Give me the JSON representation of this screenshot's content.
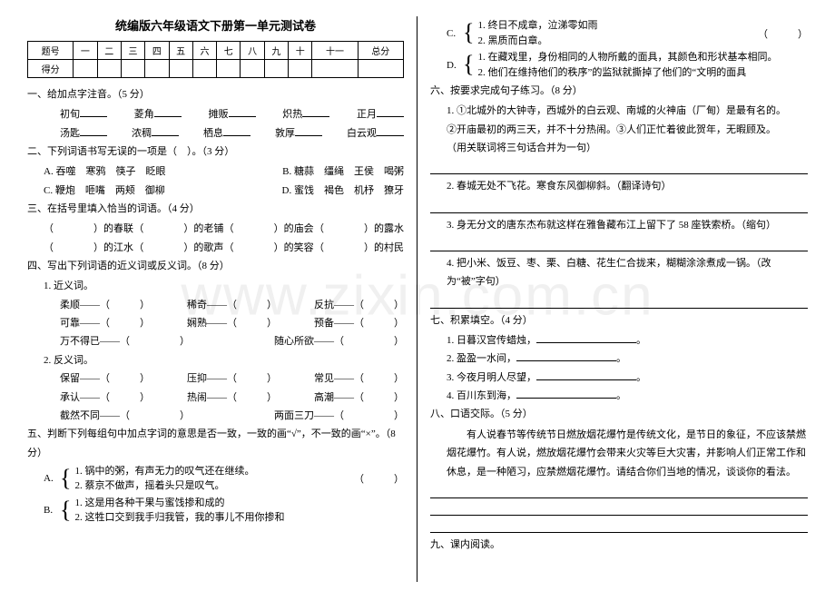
{
  "watermark": "www.zixin.com.cn",
  "title": "统编版六年级语文下册第一单元测试卷",
  "score_table": {
    "row1": [
      "题号",
      "一",
      "二",
      "三",
      "四",
      "五",
      "六",
      "七",
      "八",
      "九",
      "十",
      "十一",
      "总分"
    ],
    "row2_label": "得分"
  },
  "left": {
    "q1": {
      "head": "一、给加点字注音。（5 分）",
      "r1": [
        "初旬",
        "菱角",
        "摊贩",
        "炽热",
        "正月"
      ],
      "r2": [
        "汤匙",
        "浓稠",
        "栖息",
        "敦厚",
        "白云观"
      ]
    },
    "q2": {
      "head": "二、下列词语书写无误的一项是（　）。（3 分）",
      "a": "A. 吞噬　寒鸦　筷子　眨眼",
      "b": "B. 糖蒜　缰绳　王侯　喝粥",
      "c": "C. 鞭炮　咂嘴　两颊　御柳",
      "d": "D. 蜜饯　褐色　机杼　獠牙"
    },
    "q3": {
      "head": "三、在括号里填入恰当的词语。（4 分）",
      "r1": [
        "（　　　　）的春联",
        "（　　　　）的老铺",
        "（　　　　）的庙会",
        "（　　　　）的露水"
      ],
      "r2": [
        "（　　　　）的江水",
        "（　　　　）的歌声",
        "（　　　　）的笑容",
        "（　　　　）的村民"
      ]
    },
    "q4": {
      "head": "四、写出下列词语的近义词或反义词。（8 分）",
      "sub1": "1. 近义词。",
      "s1r1": [
        "柔顺——（　　　）",
        "稀奇——（　　　）",
        "反抗——（　　　）"
      ],
      "s1r2": [
        "可靠——（　　　）",
        "娴熟——（　　　）",
        "预备——（　　　）"
      ],
      "s1r3": [
        "万不得已——（　　　　　）",
        "随心所欲——（　　　　　）"
      ],
      "sub2": "2. 反义词。",
      "s2r1": [
        "保留——（　　　）",
        "压抑——（　　　）",
        "常见——（　　　）"
      ],
      "s2r2": [
        "承认——（　　　）",
        "热闹——（　　　）",
        "高潮——（　　　）"
      ],
      "s2r3": [
        "截然不同——（　　　　　）",
        "两面三刀——（　　　　　）"
      ]
    },
    "q5": {
      "head": "五、判断下列每组句中加点字词的意思是否一致，一致的画“√”，不一致的画“×”。（8 分）",
      "A1": "1. 锅中的粥，有声无力的叹气还在继续。",
      "A2": "2. 蔡京不做声，摇着头只是叹气。",
      "B1": "1. 这是用各种干果与蜜饯掺和成的",
      "B2": "2. 这牲口交到我手归我管，我的事儿不用你掺和"
    }
  },
  "right": {
    "C1": "1. 终日不成章，泣涕零如雨",
    "C2": "2. 黑质而白章。",
    "D1": "1. 在藏戏里，身份相同的人物所戴的面具，其颜色和形状基本相同。",
    "D2": "2. 他们在维持他们的秩序”的监狱就撕掉了他们的“文明的面具",
    "q6": {
      "head": "六、按要求完成句子练习。（8 分）",
      "s1a": "1. ①北城外的大钟寺，西城外的白云观、南城的火神庙（厂甸）是最有名的。",
      "s1b": "②开庙最初的两三天，并不十分热闹。③人们正忙着彼此贺年，无暇顾及。",
      "s1c": "（用关联词将三句话合并为一句）",
      "s2": "2. 春城无处不飞花。寒食东风御柳斜。（翻译诗句）",
      "s3": "3. 身无分文的唐东杰布就这样在雅鲁藏布江上留下了 58 座铁索桥。（缩句）",
      "s4": "4. 把小米、饭豆、枣、栗、白糖、花生仁合拢来，糊糊涂涂煮成一锅。（改为“被”字句）"
    },
    "q7": {
      "head": "七、积累填空。（4 分）",
      "i1": "1. 日暮汉宫传蜡烛，",
      "i2": "2. 盈盈一水间，",
      "i3": "3. 今夜月明人尽望，",
      "i4": "4. 百川东到海，"
    },
    "q8": {
      "head": "八、口语交际。（5 分）",
      "body": "有人说春节等传统节日燃放烟花爆竹是传统文化，是节日的象征，不应该禁燃烟花爆竹。有人说，燃放烟花爆竹会带来火灾等巨大灾害，并影响人们正常工作和休息，是一种陋习，应禁燃烟花爆竹。请结合你们当地的情况，谈谈你的看法。"
    },
    "q9": {
      "head": "九、课内阅读。"
    }
  }
}
